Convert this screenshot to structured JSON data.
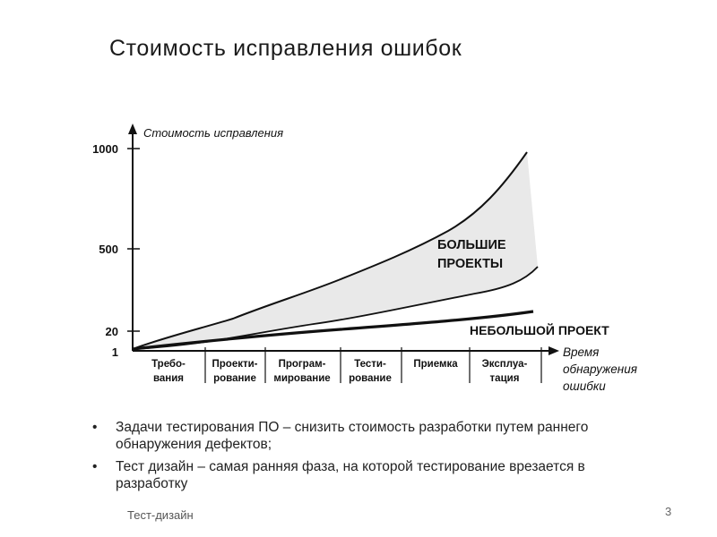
{
  "slide": {
    "title": "Стоимость исправления ошибок",
    "footer": "Тест-дизайн",
    "page_number": "3"
  },
  "diagram": {
    "y_axis_title": "Стоимость исправления",
    "x_axis_title": [
      "Время",
      "обнаружения",
      "ошибки"
    ],
    "y_ticks": [
      "1000",
      "500",
      "20",
      "1"
    ],
    "phases": [
      [
        "Требо-",
        "вания"
      ],
      [
        "Проекти-",
        "рование"
      ],
      [
        "Програм-",
        "мирование"
      ],
      [
        "Тести-",
        "рование"
      ],
      [
        "Приемка"
      ],
      [
        "Эксплуа-",
        "тация"
      ]
    ],
    "big_projects_label": [
      "БОЛЬШИЕ",
      "ПРОЕКТЫ"
    ],
    "small_project_label": "НЕБОЛЬШОЙ ПРОЕКТ"
  },
  "bullets": [
    "Задачи тестирования ПО – снизить стоимость разработки путем раннего обнаружения дефектов;",
    "Тест дизайн – самая ранняя фаза, на которой тестирование врезается в разработку"
  ]
}
